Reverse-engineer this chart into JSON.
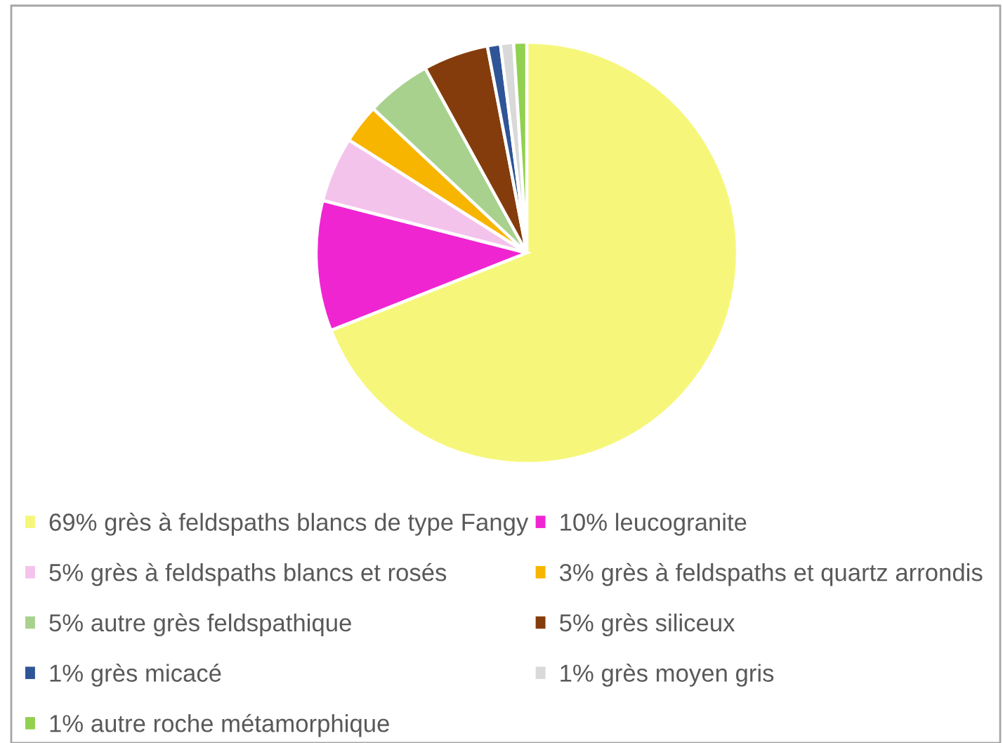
{
  "chart_data": {
    "type": "pie",
    "categories": [
      "69% grès à feldspaths blancs de type Fangy",
      "10% leucogranite",
      "5% grès à feldspaths blancs et rosés",
      "3% grès à feldspaths et quartz arrondis",
      "5% autre grès feldspathique",
      "5% grès siliceux",
      "1% grès micacé",
      "1% grès moyen gris",
      "1% autre roche métamorphique"
    ],
    "values": [
      69,
      10,
      5,
      3,
      5,
      5,
      1,
      1,
      1
    ],
    "colors": [
      "#f6f77a",
      "#f025d2",
      "#f4c3ec",
      "#f7b500",
      "#a9d18e",
      "#843c0c",
      "#2f5597",
      "#d9d9d9",
      "#92d050"
    ],
    "legend": "bottom"
  }
}
